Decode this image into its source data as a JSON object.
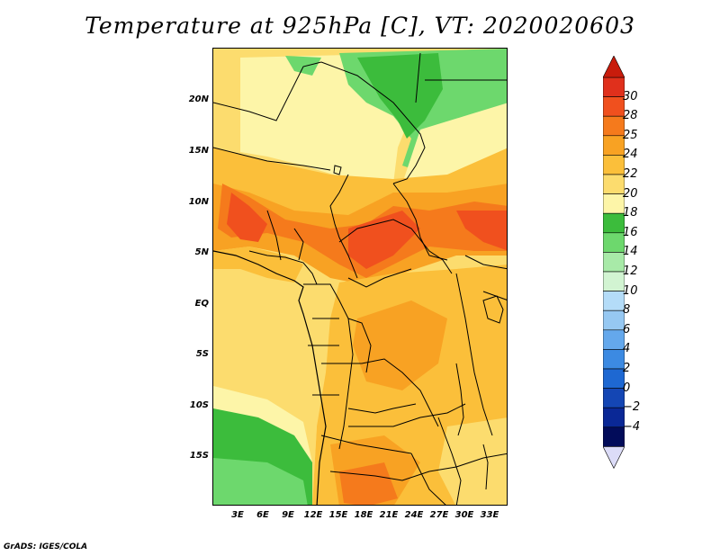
{
  "title": "Temperature at 925hPa [C], VT: 2020020603",
  "credit": "GrADS: IGES/COLA",
  "map": {
    "lat_labels": [
      "20N",
      "15N",
      "10N",
      "5N",
      "EQ",
      "5S",
      "10S",
      "15S"
    ],
    "lon_labels": [
      "3E",
      "6E",
      "9E",
      "12E",
      "15E",
      "18E",
      "21E",
      "24E",
      "27E",
      "30E",
      "33E"
    ]
  },
  "colorbar": {
    "levels": [
      "30",
      "28",
      "25",
      "24",
      "22",
      "20",
      "18",
      "16",
      "14",
      "12",
      "10",
      "8",
      "6",
      "4",
      "2",
      "0",
      "−2",
      "−4"
    ],
    "colors": [
      "#e0301c",
      "#f0501e",
      "#f57a1c",
      "#f8a223",
      "#fbbf3a",
      "#fcdc6e",
      "#fdf5a8",
      "#3cbc3c",
      "#6dd86d",
      "#a8eaa8",
      "#d2f4d2",
      "#b4dcf8",
      "#96c8f2",
      "#64a8ec",
      "#3c8ae2",
      "#1e68d2",
      "#1446b4",
      "#0a2896",
      "#020c5a"
    ],
    "extend_colors": {
      "top": "#c81c0c",
      "bottom": "#dcdcf8"
    }
  }
}
